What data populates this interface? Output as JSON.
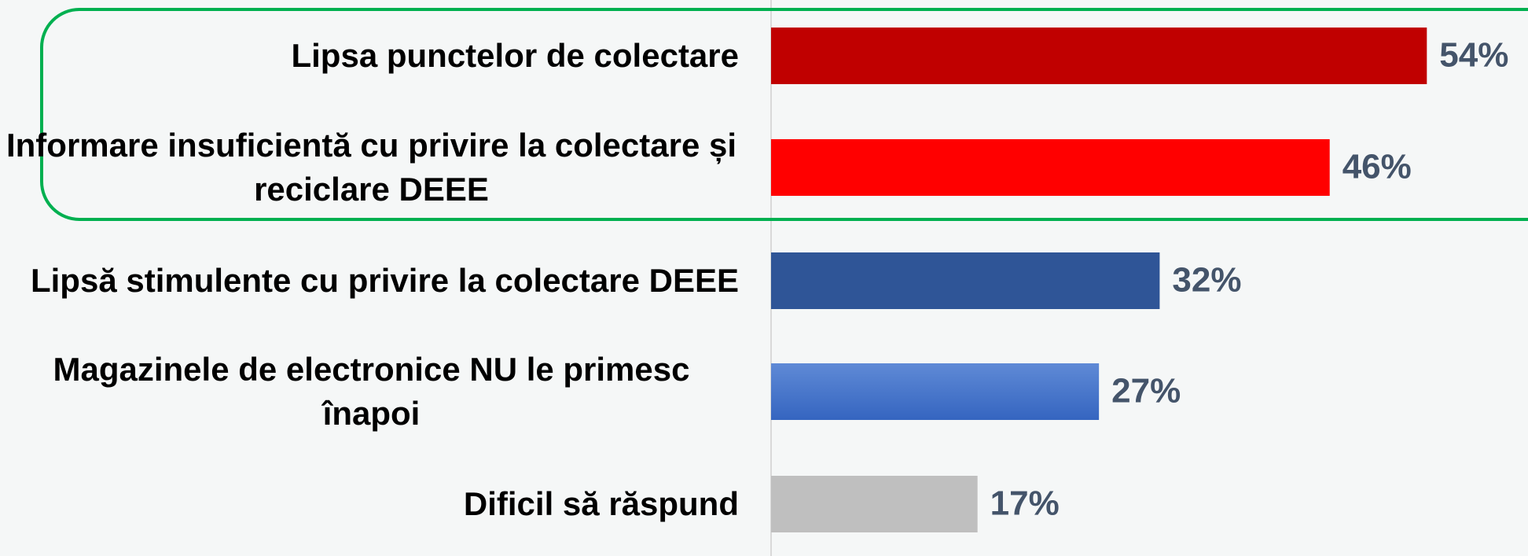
{
  "chart_data": {
    "type": "bar",
    "orientation": "horizontal",
    "categories": [
      "Lipsa punctelor de colectare",
      "Informare insuficientă cu privire la colectare și reciclare DEEE",
      "Lipsă stimulente cu privire la colectare DEEE",
      "Magazinele de electronice NU le primesc înapoi",
      "Dificil să răspund"
    ],
    "values": [
      54,
      46,
      32,
      27,
      17
    ],
    "value_labels": [
      "54%",
      "46%",
      "32%",
      "27%",
      "17%"
    ],
    "colors": [
      "#c00000",
      "#ff0000",
      "#2f5597",
      "#4472c4",
      "#bfbfbf"
    ],
    "xlim": [
      0,
      60
    ]
  }
}
